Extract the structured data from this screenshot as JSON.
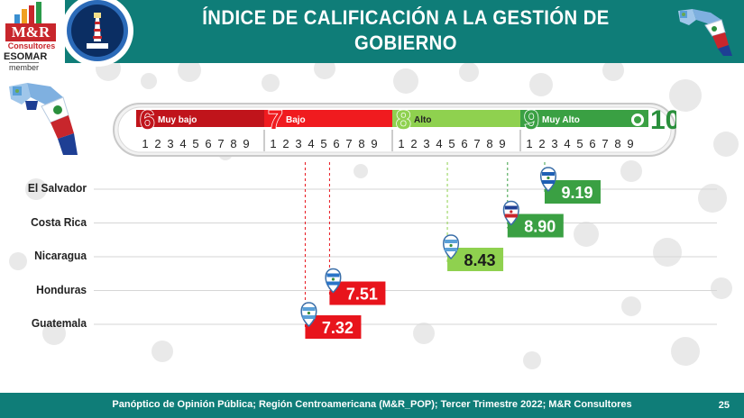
{
  "header": {
    "title_line1": "ÍNDICE DE CALIFICACIÓN A LA GESTIÓN DE",
    "title_line2": "GOBIERNO"
  },
  "logo": {
    "brand": "M&R",
    "sub": "Consultores",
    "esomar": "ESOMAR",
    "member": "member"
  },
  "scale": {
    "ranges": [
      {
        "number": "6",
        "label": "Muy bajo",
        "color": "#c0141b"
      },
      {
        "number": "7",
        "label": "Bajo",
        "color": "#f01b1f"
      },
      {
        "number": "8",
        "label": "Alto",
        "color": "#8fd14f"
      },
      {
        "number": "9",
        "label": "Muy Alto",
        "color": "#3aa043"
      }
    ],
    "end_number": "10",
    "ticks": [
      "1",
      "2",
      "3",
      "4",
      "5",
      "6",
      "7",
      "8",
      "9"
    ]
  },
  "chart_data": {
    "type": "bar",
    "categories": [
      "El Salvador",
      "Costa Rica",
      "Nicaragua",
      "Honduras",
      "Guatemala"
    ],
    "values": [
      9.19,
      8.9,
      8.43,
      7.51,
      7.32
    ],
    "value_labels": [
      "9.19",
      "8.90",
      "8.43",
      "7.51",
      "7.32"
    ],
    "xlim": [
      6,
      10
    ],
    "badge_colors": [
      "#3aa043",
      "#3aa043",
      "#8fd14f",
      "#e8141c",
      "#e8141c"
    ],
    "flags": [
      "el-salvador-flag-icon",
      "costa-rica-flag-icon",
      "nicaragua-flag-icon",
      "honduras-flag-icon",
      "guatemala-flag-icon"
    ]
  },
  "footer": {
    "source": "Panóptico de Opinión Pública; Región Centroamericana (M&R_POP); Tercer Trimestre 2022; M&R Consultores",
    "page": "25"
  }
}
